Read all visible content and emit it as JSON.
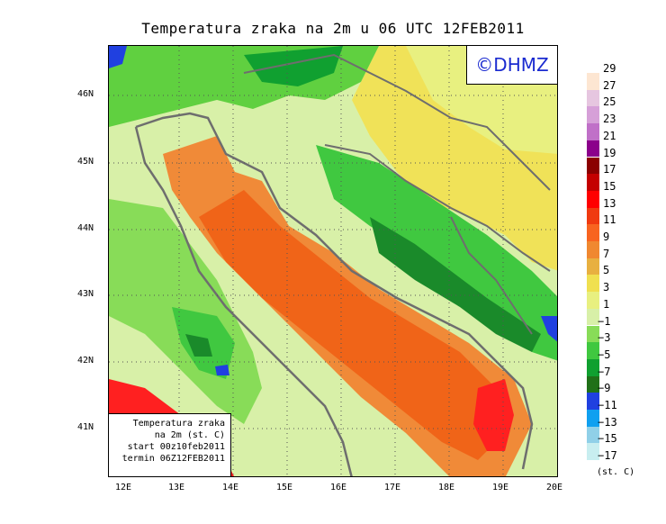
{
  "title": "Temperatura zraka na 2m u 06 UTC 12FEB2011",
  "credit": "©DHMZ",
  "infobox": {
    "line1": "Temperatura zraka",
    "line2": "na 2m (st. C)",
    "line3": "start 00z10feb2011",
    "line4": "termin 06Z12FEB2011"
  },
  "lat_labels": [
    "46N",
    "45N",
    "44N",
    "43N",
    "42N",
    "41N"
  ],
  "lon_labels": [
    "12E",
    "13E",
    "14E",
    "15E",
    "16E",
    "17E",
    "18E",
    "19E",
    "20E"
  ],
  "legend": {
    "unit": "(st. C)",
    "labels": [
      "29",
      "27",
      "25",
      "23",
      "21",
      "19",
      "17",
      "15",
      "13",
      "11",
      "9",
      "7",
      "5",
      "3",
      "1",
      "−1",
      "−3",
      "−5",
      "−7",
      "−9",
      "−11",
      "−13",
      "−15",
      "−17"
    ],
    "colors": [
      "#fde6d2",
      "#e6c6e0",
      "#d6a0d8",
      "#c070c8",
      "#8b008b",
      "#8b0000",
      "#c40000",
      "#ff0000",
      "#f03a10",
      "#f86420",
      "#f08830",
      "#e8b040",
      "#f0e050",
      "#e8f080",
      "#d8f0a8",
      "#88dc58",
      "#40c840",
      "#10a030",
      "#207018",
      "#2040e0",
      "#10a0f0",
      "#90d0e8",
      "#c8eef0"
    ]
  },
  "colors": {
    "land_light": "#e4f4a0",
    "land_yellow": "#f0e258",
    "land_green": "#60d040",
    "land_dark_green": "#1a8a2a",
    "sea_orange": "#f06418",
    "sea_light_orange": "#f08a38",
    "red": "#ff2020",
    "blue": "#2040e0",
    "border": "#6e6e6e",
    "credit_text": "#1b2bd0"
  }
}
